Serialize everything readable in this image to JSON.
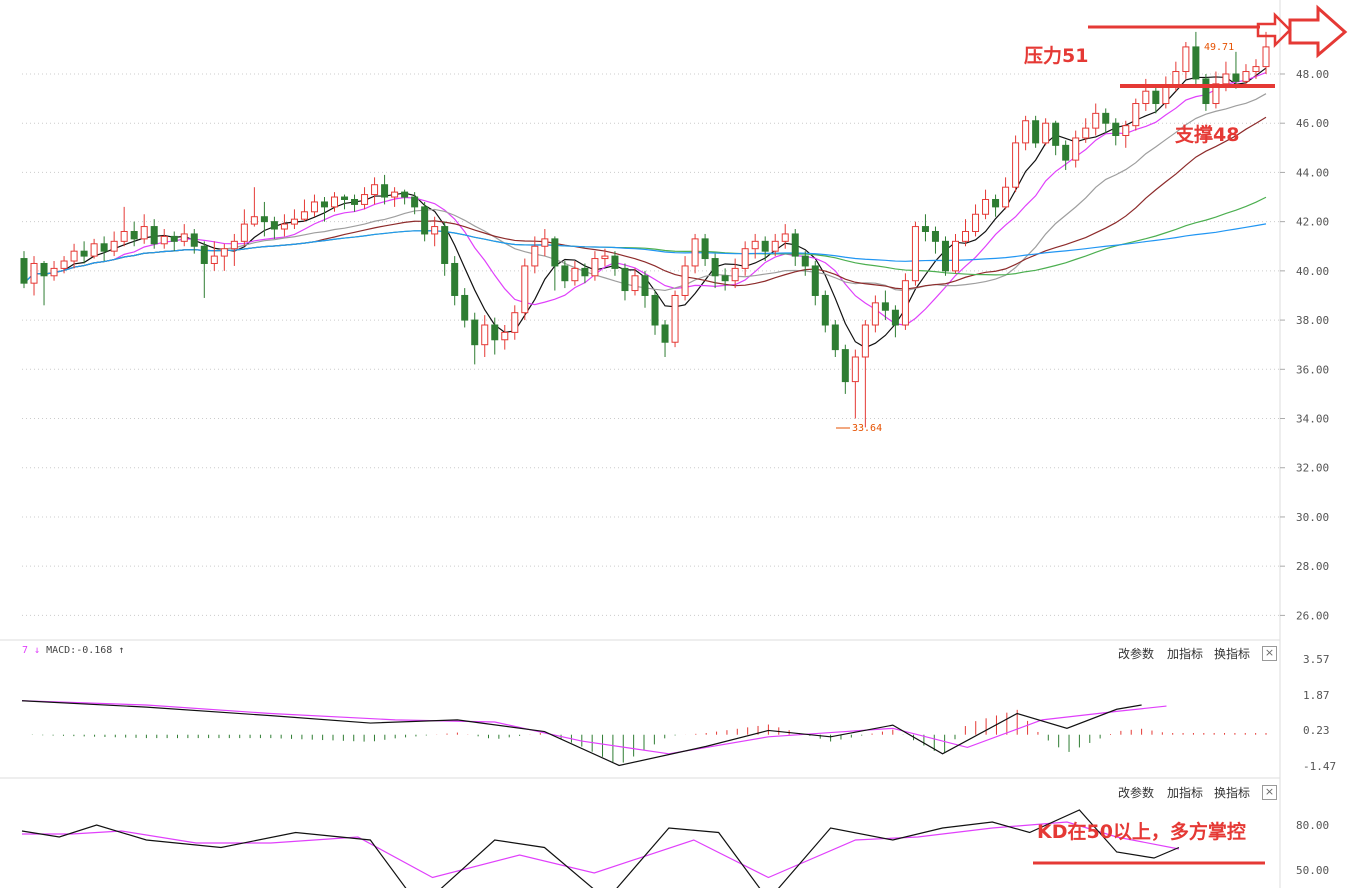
{
  "chart_data": {
    "type": "candlestick",
    "price_axis": {
      "ticks": [
        "26.00",
        "28.00",
        "30.00",
        "32.00",
        "34.00",
        "36.00",
        "38.00",
        "40.00",
        "42.00",
        "44.00",
        "46.00",
        "48.00"
      ],
      "range": [
        25,
        50.6
      ]
    },
    "candles": [
      [
        40.5,
        39.5,
        40.8,
        39.3
      ],
      [
        39.5,
        40.3,
        40.6,
        39.0
      ],
      [
        40.3,
        39.8,
        40.4,
        38.6
      ],
      [
        39.8,
        40.1,
        40.4,
        39.6
      ],
      [
        40.1,
        40.4,
        40.6,
        39.9
      ],
      [
        40.4,
        40.8,
        41.1,
        40.1
      ],
      [
        40.8,
        40.6,
        41.2,
        40.3
      ],
      [
        40.6,
        41.1,
        41.3,
        40.5
      ],
      [
        41.1,
        40.8,
        41.4,
        40.4
      ],
      [
        40.8,
        41.2,
        41.6,
        40.6
      ],
      [
        41.2,
        41.6,
        42.6,
        41.0
      ],
      [
        41.6,
        41.3,
        42.0,
        41.0
      ],
      [
        41.3,
        41.8,
        42.3,
        41.1
      ],
      [
        41.8,
        41.1,
        42.1,
        40.9
      ],
      [
        41.1,
        41.4,
        41.7,
        40.9
      ],
      [
        41.4,
        41.2,
        41.6,
        40.8
      ],
      [
        41.2,
        41.5,
        41.9,
        41.0
      ],
      [
        41.5,
        41.0,
        41.7,
        40.7
      ],
      [
        41.0,
        40.3,
        41.2,
        38.9
      ],
      [
        40.3,
        40.6,
        41.2,
        40.0
      ],
      [
        40.6,
        40.9,
        41.1,
        40.0
      ],
      [
        40.9,
        41.2,
        41.5,
        40.2
      ],
      [
        41.2,
        41.9,
        42.5,
        41.0
      ],
      [
        41.9,
        42.2,
        43.4,
        41.8
      ],
      [
        42.2,
        42.0,
        42.8,
        41.4
      ],
      [
        42.0,
        41.7,
        42.2,
        41.3
      ],
      [
        41.7,
        41.9,
        42.3,
        41.4
      ],
      [
        41.9,
        42.1,
        42.5,
        41.7
      ],
      [
        42.1,
        42.4,
        42.9,
        42.0
      ],
      [
        42.4,
        42.8,
        43.1,
        42.2
      ],
      [
        42.8,
        42.6,
        43.0,
        42.0
      ],
      [
        42.6,
        43.0,
        43.2,
        42.4
      ],
      [
        43.0,
        42.9,
        43.1,
        42.5
      ],
      [
        42.9,
        42.7,
        43.1,
        42.4
      ],
      [
        42.7,
        43.1,
        43.4,
        42.5
      ],
      [
        43.1,
        43.5,
        43.8,
        42.7
      ],
      [
        43.5,
        43.0,
        43.9,
        42.7
      ],
      [
        43.0,
        43.2,
        43.4,
        42.6
      ],
      [
        43.2,
        43.0,
        43.3,
        42.7
      ],
      [
        43.0,
        42.6,
        43.2,
        42.3
      ],
      [
        42.6,
        41.5,
        42.8,
        41.2
      ],
      [
        41.5,
        41.8,
        42.2,
        41.0
      ],
      [
        41.8,
        40.3,
        42.0,
        39.8
      ],
      [
        40.3,
        39.0,
        40.6,
        38.6
      ],
      [
        39.0,
        38.0,
        39.3,
        37.7
      ],
      [
        38.0,
        37.0,
        38.3,
        36.2
      ],
      [
        37.0,
        37.8,
        38.2,
        36.5
      ],
      [
        37.8,
        37.2,
        38.1,
        36.6
      ],
      [
        37.2,
        37.5,
        37.8,
        36.8
      ],
      [
        37.5,
        38.3,
        38.6,
        37.2
      ],
      [
        38.3,
        40.2,
        40.5,
        38.0
      ],
      [
        40.2,
        41.0,
        41.4,
        39.9
      ],
      [
        41.0,
        41.3,
        41.7,
        40.6
      ],
      [
        41.3,
        40.2,
        41.4,
        39.2
      ],
      [
        40.2,
        39.6,
        40.4,
        39.3
      ],
      [
        39.6,
        40.1,
        40.4,
        39.4
      ],
      [
        40.1,
        39.8,
        40.3,
        39.5
      ],
      [
        39.8,
        40.5,
        40.8,
        39.6
      ],
      [
        40.5,
        40.6,
        40.9,
        40.2
      ],
      [
        40.6,
        40.1,
        40.8,
        39.8
      ],
      [
        40.1,
        39.2,
        40.3,
        38.8
      ],
      [
        39.2,
        39.8,
        40.1,
        39.0
      ],
      [
        39.8,
        39.0,
        40.0,
        38.5
      ],
      [
        39.0,
        37.8,
        39.2,
        37.4
      ],
      [
        37.8,
        37.1,
        38.0,
        36.5
      ],
      [
        37.1,
        39.0,
        39.2,
        36.9
      ],
      [
        39.0,
        40.2,
        40.6,
        38.8
      ],
      [
        40.2,
        41.3,
        41.5,
        39.9
      ],
      [
        41.3,
        40.5,
        41.5,
        40.2
      ],
      [
        40.5,
        39.8,
        40.7,
        39.3
      ],
      [
        39.8,
        39.6,
        40.1,
        39.2
      ],
      [
        39.6,
        40.1,
        40.5,
        39.3
      ],
      [
        40.1,
        40.9,
        41.2,
        39.8
      ],
      [
        40.9,
        41.2,
        41.5,
        40.5
      ],
      [
        41.2,
        40.8,
        41.4,
        40.4
      ],
      [
        40.8,
        41.2,
        41.5,
        40.6
      ],
      [
        41.2,
        41.5,
        41.9,
        40.9
      ],
      [
        41.5,
        40.6,
        41.7,
        40.2
      ],
      [
        40.6,
        40.2,
        40.8,
        39.8
      ],
      [
        40.2,
        39.0,
        40.4,
        38.6
      ],
      [
        39.0,
        37.8,
        39.2,
        37.5
      ],
      [
        37.8,
        36.8,
        38.0,
        36.5
      ],
      [
        36.8,
        35.5,
        37.0,
        35.0
      ],
      [
        35.5,
        36.5,
        36.8,
        34.0
      ],
      [
        36.5,
        37.8,
        38.0,
        33.64
      ],
      [
        37.8,
        38.7,
        39.0,
        37.5
      ],
      [
        38.7,
        38.4,
        39.2,
        38.0
      ],
      [
        38.4,
        37.8,
        38.6,
        37.3
      ],
      [
        37.8,
        39.6,
        39.9,
        37.6
      ],
      [
        39.6,
        41.8,
        42.0,
        39.4
      ],
      [
        41.8,
        41.6,
        42.3,
        41.2
      ],
      [
        41.6,
        41.2,
        41.8,
        40.7
      ],
      [
        41.2,
        40.0,
        41.4,
        39.8
      ],
      [
        40.0,
        41.2,
        41.5,
        39.9
      ],
      [
        41.2,
        41.6,
        42.1,
        41.0
      ],
      [
        41.6,
        42.3,
        42.7,
        41.4
      ],
      [
        42.3,
        42.9,
        43.3,
        42.1
      ],
      [
        42.9,
        42.6,
        43.1,
        42.2
      ],
      [
        42.6,
        43.4,
        43.8,
        42.5
      ],
      [
        43.4,
        45.2,
        45.5,
        43.2
      ],
      [
        45.2,
        46.1,
        46.3,
        44.9
      ],
      [
        46.1,
        45.2,
        46.3,
        45.0
      ],
      [
        45.2,
        46.0,
        46.2,
        45.1
      ],
      [
        46.0,
        45.1,
        46.1,
        44.7
      ],
      [
        45.1,
        44.5,
        45.3,
        44.1
      ],
      [
        44.5,
        45.4,
        45.7,
        44.2
      ],
      [
        45.4,
        45.8,
        46.2,
        45.2
      ],
      [
        45.8,
        46.4,
        46.8,
        45.5
      ],
      [
        46.4,
        46.0,
        46.6,
        45.6
      ],
      [
        46.0,
        45.5,
        46.2,
        45.1
      ],
      [
        45.5,
        45.9,
        46.1,
        45.0
      ],
      [
        45.9,
        46.8,
        47.0,
        45.7
      ],
      [
        46.8,
        47.3,
        47.8,
        46.5
      ],
      [
        47.3,
        46.8,
        47.5,
        46.4
      ],
      [
        46.8,
        47.5,
        47.9,
        46.6
      ],
      [
        47.5,
        48.1,
        48.5,
        47.3
      ],
      [
        48.1,
        49.1,
        49.3,
        47.8
      ],
      [
        49.1,
        47.8,
        49.71,
        47.5
      ],
      [
        47.8,
        46.8,
        48.0,
        46.5
      ],
      [
        46.8,
        47.6,
        48.1,
        46.6
      ],
      [
        47.6,
        48.0,
        48.5,
        47.3
      ],
      [
        48.0,
        47.7,
        48.9,
        47.4
      ],
      [
        47.7,
        48.1,
        48.4,
        47.5
      ],
      [
        48.1,
        48.3,
        48.6,
        47.8
      ],
      [
        48.3,
        49.1,
        49.71,
        48.0
      ]
    ],
    "max_label": "49.71",
    "min_label": "33.64",
    "macd": {
      "label": "MACD:-0.168",
      "ticks": [
        "3.57",
        "1.87",
        "0.23",
        "-1.47"
      ],
      "range": [
        -1.9,
        3.9
      ],
      "dif": [
        [
          0,
          1.6
        ],
        [
          0.1,
          1.3
        ],
        [
          0.2,
          0.9
        ],
        [
          0.28,
          0.55
        ],
        [
          0.35,
          0.7
        ],
        [
          0.42,
          0.15
        ],
        [
          0.48,
          -1.45
        ],
        [
          0.55,
          -0.55
        ],
        [
          0.6,
          0.2
        ],
        [
          0.65,
          -0.1
        ],
        [
          0.7,
          0.45
        ],
        [
          0.74,
          -0.9
        ],
        [
          0.8,
          1.0
        ],
        [
          0.84,
          0.3
        ],
        [
          0.88,
          1.2
        ],
        [
          0.9,
          1.4
        ]
      ],
      "dea": [
        [
          0,
          1.6
        ],
        [
          0.1,
          1.4
        ],
        [
          0.2,
          1.0
        ],
        [
          0.3,
          0.7
        ],
        [
          0.38,
          0.6
        ],
        [
          0.45,
          -0.3
        ],
        [
          0.52,
          -0.9
        ],
        [
          0.6,
          -0.1
        ],
        [
          0.65,
          0.1
        ],
        [
          0.7,
          0.3
        ],
        [
          0.76,
          -0.6
        ],
        [
          0.82,
          0.7
        ],
        [
          0.88,
          1.1
        ],
        [
          0.92,
          1.35
        ]
      ]
    },
    "kd": {
      "ticks": [
        "80.00",
        "50.00"
      ],
      "range": [
        38,
        100
      ],
      "k": [
        [
          0,
          76
        ],
        [
          0.03,
          72
        ],
        [
          0.06,
          80
        ],
        [
          0.1,
          70
        ],
        [
          0.16,
          65
        ],
        [
          0.22,
          75
        ],
        [
          0.28,
          70
        ],
        [
          0.32,
          25
        ],
        [
          0.38,
          70
        ],
        [
          0.42,
          65
        ],
        [
          0.47,
          30
        ],
        [
          0.52,
          78
        ],
        [
          0.56,
          75
        ],
        [
          0.6,
          30
        ],
        [
          0.65,
          78
        ],
        [
          0.7,
          70
        ],
        [
          0.74,
          78
        ],
        [
          0.78,
          82
        ],
        [
          0.81,
          75
        ],
        [
          0.85,
          90
        ],
        [
          0.88,
          62
        ],
        [
          0.91,
          58
        ],
        [
          0.93,
          65
        ]
      ],
      "d": [
        [
          0,
          74
        ],
        [
          0.04,
          74
        ],
        [
          0.08,
          76
        ],
        [
          0.14,
          68
        ],
        [
          0.2,
          68
        ],
        [
          0.27,
          72
        ],
        [
          0.33,
          45
        ],
        [
          0.4,
          60
        ],
        [
          0.46,
          48
        ],
        [
          0.54,
          70
        ],
        [
          0.6,
          45
        ],
        [
          0.67,
          70
        ],
        [
          0.72,
          72
        ],
        [
          0.78,
          78
        ],
        [
          0.84,
          82
        ],
        [
          0.88,
          72
        ],
        [
          0.93,
          64
        ]
      ]
    }
  },
  "annotations": {
    "resistance": "压力51",
    "support": "支撑48",
    "kd_note": "KD在50以上，多方掌控"
  },
  "panel_buttons": {
    "edit": "改参数",
    "add": "加指标",
    "switch": "换指标",
    "close": "×"
  },
  "colors": {
    "up": "#e53935",
    "down": "#2e7d32",
    "ma5": "#111111",
    "ma10": "#e040fb",
    "ma20": "#9e9e9e",
    "ma30": "#8d2b2b",
    "ma60": "#4caf50",
    "ma120": "#2196f3",
    "ma250": "#ffa726",
    "annotation": "#e53935"
  }
}
